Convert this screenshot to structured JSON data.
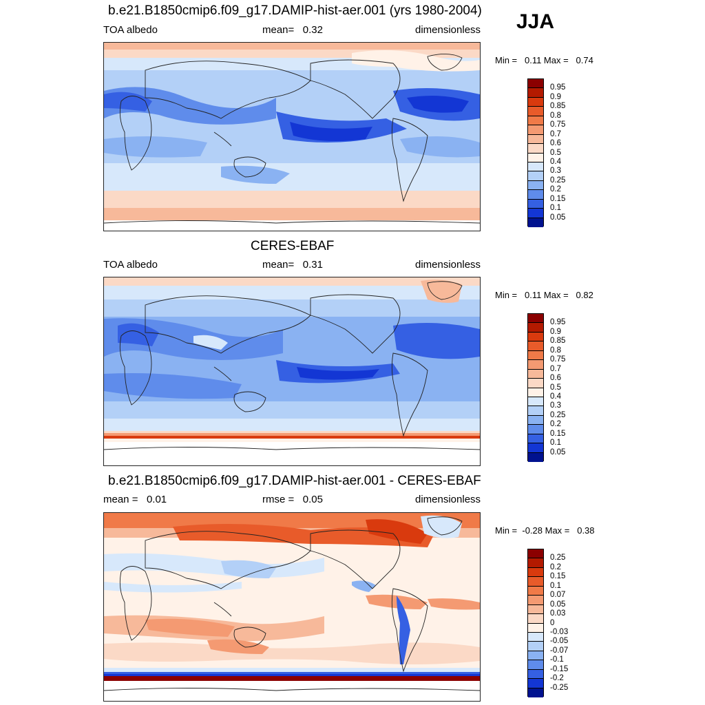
{
  "season": "JJA",
  "panels": [
    {
      "title": "b.e21.B1850cmip6.f09_g17.DAMIP-hist-aer.001 (yrs 1980-2004)",
      "left": "TOA albedo",
      "middle": "mean=   0.32",
      "right": "dimensionless",
      "minmax": "Min =   0.11 Max =   0.74",
      "levels": [
        "0.95",
        "0.9",
        "0.85",
        "0.8",
        "0.75",
        "0.7",
        "0.6",
        "0.5",
        "0.4",
        "0.3",
        "0.25",
        "0.2",
        "0.15",
        "0.1",
        "0.05"
      ],
      "colors": [
        "#8b0000",
        "#b31a00",
        "#d93a0e",
        "#e85b2a",
        "#f07a48",
        "#f49a72",
        "#f7b99a",
        "#fbd9c6",
        "#fff2e8",
        "#d7e8fb",
        "#b3d0f7",
        "#8ab2f2",
        "#5f8ceb",
        "#3560e3",
        "#1336d4",
        "#00128f"
      ]
    },
    {
      "title": "CERES-EBAF",
      "left": "TOA albedo",
      "middle": "mean=   0.31",
      "right": "dimensionless",
      "minmax": "Min =   0.11 Max =   0.82",
      "levels": [
        "0.95",
        "0.9",
        "0.85",
        "0.8",
        "0.75",
        "0.7",
        "0.6",
        "0.5",
        "0.4",
        "0.3",
        "0.25",
        "0.2",
        "0.15",
        "0.1",
        "0.05"
      ],
      "colors": [
        "#8b0000",
        "#b31a00",
        "#d93a0e",
        "#e85b2a",
        "#f07a48",
        "#f49a72",
        "#f7b99a",
        "#fbd9c6",
        "#fff2e8",
        "#d7e8fb",
        "#b3d0f7",
        "#8ab2f2",
        "#5f8ceb",
        "#3560e3",
        "#1336d4",
        "#00128f"
      ]
    },
    {
      "title": "b.e21.B1850cmip6.f09_g17.DAMIP-hist-aer.001 - CERES-EBAF",
      "left": "mean =   0.01",
      "middle": "rmse =   0.05",
      "right": "dimensionless",
      "minmax": "Min =  -0.28 Max =   0.38",
      "levels": [
        "0.25",
        "0.2",
        "0.15",
        "0.1",
        "0.07",
        "0.05",
        "0.03",
        "0",
        "-0.03",
        "-0.05",
        "-0.07",
        "-0.1",
        "-0.15",
        "-0.2",
        "-0.25"
      ],
      "colors": [
        "#8b0000",
        "#b31a00",
        "#d93a0e",
        "#e85b2a",
        "#f07a48",
        "#f49a72",
        "#f7b99a",
        "#fbd9c6",
        "#fff2e8",
        "#d7e8fb",
        "#b3d0f7",
        "#8ab2f2",
        "#5f8ceb",
        "#3560e3",
        "#1336d4",
        "#00128f"
      ]
    }
  ]
}
